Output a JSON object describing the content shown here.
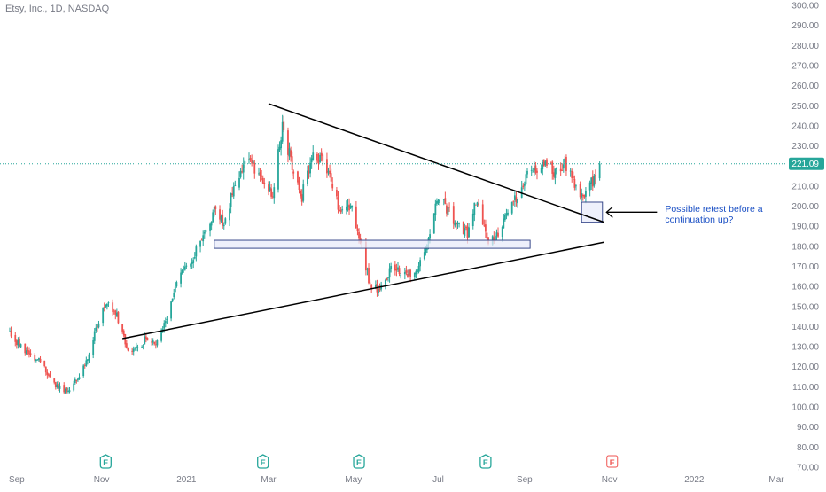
{
  "symbol": {
    "title": "Etsy, Inc., 1D, NASDAQ"
  },
  "colors": {
    "up": "#26a69a",
    "down": "#ef5350",
    "price_line": "#26a69a",
    "box_fill": "#e8ebfa",
    "box_stroke": "#3a4a8c",
    "annotation": "#1a4fc4",
    "axis_text": "#787b86",
    "earnings_past": "#26a69a",
    "earnings_future": "#ef5350"
  },
  "price_badge": {
    "label": "221.09"
  },
  "annotation": {
    "text_line1": "Possible retest before a",
    "text_line2": "continuation up?"
  },
  "chart_data": {
    "type": "candlestick",
    "y_axis_labels": [
      "300.00",
      "290.00",
      "280.00",
      "270.00",
      "260.00",
      "250.00",
      "240.00",
      "230.00",
      "220.00",
      "210.00",
      "200.00",
      "190.00",
      "180.00",
      "170.00",
      "160.00",
      "150.00",
      "140.00",
      "130.00",
      "120.00",
      "110.00",
      "100.00",
      "90.00",
      "80.00",
      "70.00"
    ],
    "x_axis_labels": [
      "Sep",
      "Nov",
      "2021",
      "Mar",
      "May",
      "Jul",
      "Sep",
      "Nov",
      "2022",
      "Mar"
    ],
    "last_price": 221.09,
    "grid": false,
    "earnings_markers": [
      {
        "label": "E",
        "status": "past"
      },
      {
        "label": "E",
        "status": "past"
      },
      {
        "label": "E",
        "status": "past"
      },
      {
        "label": "E",
        "status": "past"
      },
      {
        "label": "E",
        "status": "upcoming"
      }
    ],
    "price_path": [
      [
        "2020-08-27",
        137
      ],
      [
        "2020-09-03",
        131
      ],
      [
        "2020-09-10",
        126
      ],
      [
        "2020-09-17",
        124
      ],
      [
        "2020-09-24",
        115
      ],
      [
        "2020-10-01",
        110
      ],
      [
        "2020-10-08",
        107
      ],
      [
        "2020-10-15",
        115
      ],
      [
        "2020-10-22",
        124
      ],
      [
        "2020-10-29",
        141
      ],
      [
        "2020-11-05",
        153
      ],
      [
        "2020-11-12",
        146
      ],
      [
        "2020-11-19",
        130
      ],
      [
        "2020-11-26",
        129
      ],
      [
        "2020-12-03",
        134
      ],
      [
        "2020-12-10",
        131
      ],
      [
        "2020-12-17",
        142
      ],
      [
        "2020-12-24",
        160
      ],
      [
        "2020-12-31",
        170
      ],
      [
        "2021-01-07",
        176
      ],
      [
        "2021-01-14",
        187
      ],
      [
        "2021-01-21",
        198
      ],
      [
        "2021-01-28",
        192
      ],
      [
        "2021-02-04",
        208
      ],
      [
        "2021-02-11",
        222
      ],
      [
        "2021-02-18",
        220
      ],
      [
        "2021-02-25",
        212
      ],
      [
        "2021-03-04",
        206
      ],
      [
        "2021-03-11",
        240
      ],
      [
        "2021-03-18",
        220
      ],
      [
        "2021-03-25",
        205
      ],
      [
        "2021-04-01",
        225
      ],
      [
        "2021-04-08",
        222
      ],
      [
        "2021-04-15",
        212
      ],
      [
        "2021-04-22",
        196
      ],
      [
        "2021-04-29",
        201
      ],
      [
        "2021-05-06",
        184
      ],
      [
        "2021-05-13",
        160
      ],
      [
        "2021-05-20",
        158
      ],
      [
        "2021-05-27",
        168
      ],
      [
        "2021-06-03",
        168
      ],
      [
        "2021-06-10",
        166
      ],
      [
        "2021-06-17",
        170
      ],
      [
        "2021-06-24",
        182
      ],
      [
        "2021-07-01",
        205
      ],
      [
        "2021-07-08",
        198
      ],
      [
        "2021-07-15",
        190
      ],
      [
        "2021-07-22",
        186
      ],
      [
        "2021-07-29",
        204
      ],
      [
        "2021-08-05",
        182
      ],
      [
        "2021-08-12",
        186
      ],
      [
        "2021-08-19",
        196
      ],
      [
        "2021-08-26",
        205
      ],
      [
        "2021-09-02",
        214
      ],
      [
        "2021-09-09",
        218
      ],
      [
        "2021-09-16",
        221
      ],
      [
        "2021-09-23",
        217
      ],
      [
        "2021-09-30",
        222
      ],
      [
        "2021-10-07",
        210
      ],
      [
        "2021-10-14",
        205
      ],
      [
        "2021-10-21",
        214
      ],
      [
        "2021-10-25",
        221.09
      ]
    ],
    "annotations": {
      "trendlines": [
        {
          "from": [
            "2020-11-16",
            134
          ],
          "to": [
            "2021-10-28",
            182
          ]
        },
        {
          "from": [
            "2021-03-01",
            251
          ],
          "to": [
            "2021-10-28",
            192
          ]
        }
      ],
      "zones": [
        {
          "from": "2021-01-21",
          "to": "2021-09-05",
          "top": 183,
          "bottom": 179
        },
        {
          "from": "2021-10-12",
          "to": "2021-10-27",
          "top": 202,
          "bottom": 192
        }
      ],
      "arrow_target": [
        "2021-10-28",
        197
      ]
    }
  }
}
